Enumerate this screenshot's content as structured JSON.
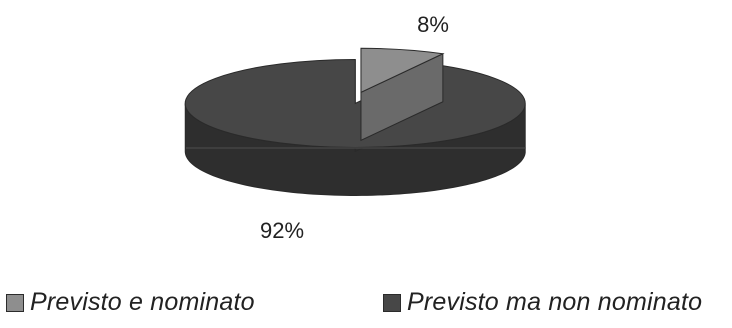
{
  "chart_data": {
    "type": "pie",
    "style": "3d-exploded",
    "categories": [
      "Previsto e nominato",
      "Previsto ma non nominato"
    ],
    "values": [
      8,
      92
    ],
    "data_labels": [
      "8%",
      "92%"
    ],
    "colors": {
      "slice_top": [
        "#8e8e8e",
        "#474747"
      ],
      "slice_side": [
        "#6a6a6a",
        "#2e2e2e"
      ],
      "outline": "#2a2a2a",
      "text": "#222222"
    },
    "legend": {
      "position": "bottom",
      "entries": [
        "Previsto e nominato",
        "Previsto ma non nominato"
      ]
    }
  }
}
